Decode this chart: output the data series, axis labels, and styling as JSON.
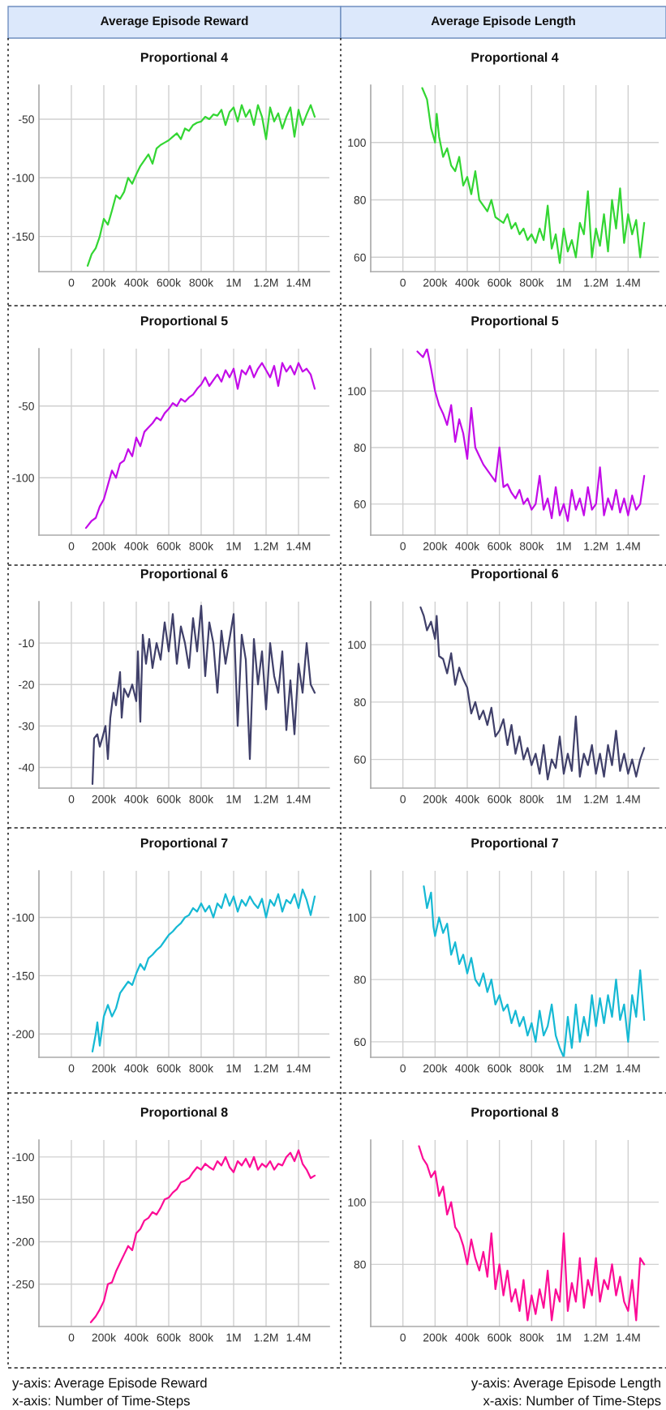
{
  "chart_data": [
    {
      "type": "line",
      "title": "Proportional 4",
      "annotations": [
        "Average Episode Reward"
      ],
      "grid": true,
      "xlim": [
        -200000,
        1590000
      ],
      "ylim": [
        -180,
        -21
      ],
      "xticks": [
        0,
        {
          "value": 200000,
          "label": "200k"
        },
        {
          "value": 400000,
          "label": "400k"
        },
        {
          "value": 600000,
          "label": "600k"
        },
        {
          "value": 800000,
          "label": "800k"
        },
        {
          "value": 1000000,
          "label": "1M"
        },
        {
          "value": 1200000,
          "label": "1.2M"
        },
        {
          "value": 1400000,
          "label": "1.4M"
        }
      ],
      "yticks": [
        -150,
        -100,
        -50
      ],
      "x": [
        100000,
        125000,
        150000,
        175000,
        200000,
        225000,
        250000,
        275000,
        300000,
        325000,
        350000,
        375000,
        400000,
        425000,
        450000,
        475000,
        500000,
        525000,
        550000,
        575000,
        600000,
        625000,
        650000,
        675000,
        700000,
        725000,
        750000,
        775000,
        800000,
        825000,
        850000,
        875000,
        900000,
        925000,
        950000,
        975000,
        1000000,
        1025000,
        1050000,
        1075000,
        1100000,
        1125000,
        1150000,
        1175000,
        1200000,
        1225000,
        1250000,
        1275000,
        1300000,
        1325000,
        1350000,
        1375000,
        1400000,
        1425000,
        1450000,
        1475000,
        1500000
      ],
      "series": [
        {
          "color": "#33d633",
          "values": [
            -175,
            -165,
            -160,
            -150,
            -135,
            -140,
            -128,
            -115,
            -118,
            -112,
            -100,
            -105,
            -97,
            -90,
            -85,
            -80,
            -88,
            -75,
            -72,
            -70,
            -68,
            -65,
            -62,
            -67,
            -58,
            -60,
            -55,
            -53,
            -52,
            -48,
            -50,
            -46,
            -47,
            -42,
            -55,
            -44,
            -40,
            -52,
            -38,
            -48,
            -42,
            -55,
            -38,
            -48,
            -67,
            -40,
            -52,
            -45,
            -58,
            -48,
            -40,
            -65,
            -42,
            -55,
            -46,
            -38,
            -48
          ]
        }
      ]
    },
    {
      "type": "line",
      "title": "Proportional 4",
      "annotations": [
        "Average Episode Length"
      ],
      "grid": true,
      "xlim": [
        -200000,
        1590000
      ],
      "ylim": [
        55,
        120
      ],
      "xticks": [
        0,
        {
          "value": 200000,
          "label": "200k"
        },
        {
          "value": 400000,
          "label": "400k"
        },
        {
          "value": 600000,
          "label": "600k"
        },
        {
          "value": 800000,
          "label": "800k"
        },
        {
          "value": 1000000,
          "label": "1M"
        },
        {
          "value": 1200000,
          "label": "1.2M"
        },
        {
          "value": 1400000,
          "label": "1.4M"
        }
      ],
      "yticks": [
        60,
        80,
        100
      ],
      "x": [
        120000,
        150000,
        175000,
        200000,
        210000,
        225000,
        250000,
        275000,
        300000,
        325000,
        350000,
        375000,
        400000,
        425000,
        450000,
        475000,
        500000,
        525000,
        550000,
        575000,
        600000,
        625000,
        650000,
        675000,
        700000,
        725000,
        750000,
        775000,
        800000,
        825000,
        850000,
        875000,
        900000,
        925000,
        950000,
        975000,
        1000000,
        1025000,
        1050000,
        1075000,
        1100000,
        1125000,
        1150000,
        1175000,
        1200000,
        1225000,
        1250000,
        1275000,
        1300000,
        1325000,
        1350000,
        1375000,
        1400000,
        1425000,
        1450000,
        1475000,
        1500000
      ],
      "series": [
        {
          "color": "#33d633",
          "values": [
            119,
            115,
            105,
            100,
            110,
            102,
            95,
            98,
            92,
            90,
            95,
            85,
            88,
            82,
            90,
            80,
            78,
            76,
            80,
            74,
            73,
            72,
            75,
            70,
            72,
            68,
            70,
            66,
            68,
            65,
            70,
            66,
            78,
            63,
            68,
            58,
            70,
            62,
            66,
            60,
            72,
            68,
            83,
            60,
            70,
            64,
            75,
            62,
            80,
            70,
            84,
            65,
            75,
            68,
            73,
            60,
            72
          ]
        }
      ]
    },
    {
      "type": "line",
      "title": "Proportional 5",
      "grid": true,
      "xlim": [
        -200000,
        1590000
      ],
      "ylim": [
        -140,
        -10
      ],
      "xticks": [
        0,
        {
          "value": 200000,
          "label": "200k"
        },
        {
          "value": 400000,
          "label": "400k"
        },
        {
          "value": 600000,
          "label": "600k"
        },
        {
          "value": 800000,
          "label": "800k"
        },
        {
          "value": 1000000,
          "label": "1M"
        },
        {
          "value": 1200000,
          "label": "1.2M"
        },
        {
          "value": 1400000,
          "label": "1.4M"
        }
      ],
      "yticks": [
        -100,
        -50
      ],
      "x": [
        90000,
        125000,
        150000,
        175000,
        200000,
        225000,
        250000,
        275000,
        300000,
        325000,
        350000,
        375000,
        400000,
        425000,
        450000,
        475000,
        500000,
        525000,
        550000,
        575000,
        600000,
        625000,
        650000,
        675000,
        700000,
        725000,
        750000,
        775000,
        800000,
        825000,
        850000,
        875000,
        900000,
        925000,
        950000,
        975000,
        1000000,
        1025000,
        1050000,
        1075000,
        1100000,
        1125000,
        1150000,
        1175000,
        1200000,
        1225000,
        1250000,
        1275000,
        1300000,
        1325000,
        1350000,
        1375000,
        1400000,
        1425000,
        1450000,
        1475000,
        1500000
      ],
      "series": [
        {
          "color": "#c30ce8",
          "values": [
            -135,
            -130,
            -128,
            -120,
            -115,
            -105,
            -95,
            -100,
            -90,
            -88,
            -80,
            -85,
            -72,
            -78,
            -68,
            -65,
            -62,
            -58,
            -60,
            -55,
            -52,
            -48,
            -50,
            -45,
            -47,
            -44,
            -42,
            -38,
            -35,
            -30,
            -36,
            -32,
            -28,
            -33,
            -25,
            -30,
            -24,
            -38,
            -25,
            -28,
            -22,
            -30,
            -24,
            -20,
            -25,
            -30,
            -22,
            -36,
            -20,
            -26,
            -22,
            -28,
            -20,
            -26,
            -24,
            -28,
            -38
          ]
        }
      ]
    },
    {
      "type": "line",
      "title": "Proportional 5",
      "grid": true,
      "xlim": [
        -200000,
        1590000
      ],
      "ylim": [
        49,
        115
      ],
      "xticks": [
        0,
        {
          "value": 200000,
          "label": "200k"
        },
        {
          "value": 400000,
          "label": "400k"
        },
        {
          "value": 600000,
          "label": "600k"
        },
        {
          "value": 800000,
          "label": "800k"
        },
        {
          "value": 1000000,
          "label": "1M"
        },
        {
          "value": 1200000,
          "label": "1.2M"
        },
        {
          "value": 1400000,
          "label": "1.4M"
        }
      ],
      "yticks": [
        60,
        80,
        100
      ],
      "x": [
        90000,
        125000,
        150000,
        175000,
        200000,
        225000,
        250000,
        275000,
        300000,
        325000,
        350000,
        375000,
        400000,
        425000,
        450000,
        475000,
        500000,
        525000,
        550000,
        575000,
        600000,
        625000,
        650000,
        675000,
        700000,
        725000,
        750000,
        775000,
        800000,
        825000,
        850000,
        875000,
        900000,
        925000,
        950000,
        975000,
        1000000,
        1025000,
        1050000,
        1075000,
        1100000,
        1125000,
        1150000,
        1175000,
        1200000,
        1225000,
        1250000,
        1275000,
        1300000,
        1325000,
        1350000,
        1375000,
        1400000,
        1425000,
        1450000,
        1475000,
        1500000
      ],
      "series": [
        {
          "color": "#c30ce8",
          "values": [
            114,
            112,
            115,
            108,
            100,
            95,
            92,
            88,
            95,
            82,
            90,
            85,
            76,
            94,
            80,
            77,
            74,
            72,
            70,
            68,
            80,
            66,
            67,
            64,
            62,
            65,
            60,
            62,
            58,
            60,
            70,
            58,
            62,
            55,
            66,
            56,
            60,
            54,
            65,
            58,
            62,
            56,
            66,
            58,
            60,
            73,
            56,
            62,
            58,
            65,
            57,
            62,
            56,
            63,
            58,
            60,
            70
          ]
        }
      ]
    },
    {
      "type": "line",
      "title": "Proportional 6",
      "grid": true,
      "xlim": [
        -200000,
        1590000
      ],
      "ylim": [
        -45,
        0
      ],
      "xticks": [
        0,
        {
          "value": 200000,
          "label": "200k"
        },
        {
          "value": 400000,
          "label": "400k"
        },
        {
          "value": 600000,
          "label": "600k"
        },
        {
          "value": 800000,
          "label": "800k"
        },
        {
          "value": 1000000,
          "label": "1M"
        },
        {
          "value": 1200000,
          "label": "1.2M"
        },
        {
          "value": 1400000,
          "label": "1.4M"
        }
      ],
      "yticks": [
        -40,
        -30,
        -20,
        -10
      ],
      "x": [
        130000,
        140000,
        150000,
        160000,
        175000,
        190000,
        200000,
        210000,
        225000,
        240000,
        260000,
        275000,
        300000,
        310000,
        325000,
        350000,
        375000,
        400000,
        410000,
        425000,
        440000,
        460000,
        480000,
        500000,
        525000,
        550000,
        575000,
        600000,
        625000,
        650000,
        675000,
        700000,
        725000,
        750000,
        775000,
        800000,
        825000,
        850000,
        875000,
        900000,
        925000,
        950000,
        975000,
        1000000,
        1025000,
        1050000,
        1075000,
        1100000,
        1125000,
        1150000,
        1175000,
        1200000,
        1225000,
        1250000,
        1275000,
        1300000,
        1325000,
        1350000,
        1375000,
        1400000,
        1425000,
        1450000,
        1475000,
        1500000
      ],
      "series": [
        {
          "color": "#40406a",
          "values": [
            -44,
            -33,
            null,
            -32,
            -35,
            -33,
            null,
            -30,
            -38,
            -28,
            -22,
            -25,
            -17,
            -28,
            -21,
            -23,
            -20,
            -24,
            -12,
            -29,
            -8,
            -15,
            -9,
            -16,
            -10,
            -14,
            -5,
            -12,
            -3,
            -15,
            -6,
            -10,
            -16,
            -4,
            -12,
            -1,
            -18,
            -5,
            -10,
            -22,
            -7,
            -15,
            -9,
            -3,
            -30,
            -8,
            -14,
            -38,
            -9,
            -20,
            -12,
            -26,
            -10,
            -18,
            -22,
            -12,
            -31,
            -19,
            -32,
            -15,
            -22,
            -10,
            -20,
            -22
          ]
        }
      ]
    },
    {
      "type": "line",
      "title": "Proportional 6",
      "grid": true,
      "xlim": [
        -200000,
        1590000
      ],
      "ylim": [
        50,
        115
      ],
      "xticks": [
        0,
        {
          "value": 200000,
          "label": "200k"
        },
        {
          "value": 400000,
          "label": "400k"
        },
        {
          "value": 600000,
          "label": "600k"
        },
        {
          "value": 800000,
          "label": "800k"
        },
        {
          "value": 1000000,
          "label": "1M"
        },
        {
          "value": 1200000,
          "label": "1.2M"
        },
        {
          "value": 1400000,
          "label": "1.4M"
        }
      ],
      "yticks": [
        60,
        80,
        100
      ],
      "x": [
        110000,
        130000,
        150000,
        175000,
        200000,
        210000,
        225000,
        250000,
        275000,
        300000,
        325000,
        350000,
        375000,
        400000,
        425000,
        450000,
        475000,
        500000,
        525000,
        550000,
        575000,
        600000,
        625000,
        650000,
        675000,
        700000,
        725000,
        750000,
        775000,
        800000,
        825000,
        850000,
        875000,
        900000,
        925000,
        950000,
        975000,
        1000000,
        1025000,
        1050000,
        1075000,
        1100000,
        1125000,
        1150000,
        1175000,
        1200000,
        1225000,
        1250000,
        1275000,
        1300000,
        1325000,
        1350000,
        1375000,
        1400000,
        1425000,
        1450000,
        1475000,
        1500000
      ],
      "series": [
        {
          "color": "#40406a",
          "values": [
            113,
            110,
            105,
            108,
            102,
            110,
            96,
            95,
            90,
            97,
            86,
            92,
            88,
            85,
            76,
            80,
            74,
            77,
            72,
            78,
            68,
            70,
            74,
            65,
            72,
            62,
            68,
            60,
            64,
            58,
            62,
            55,
            65,
            53,
            60,
            57,
            68,
            55,
            62,
            56,
            75,
            54,
            62,
            58,
            65,
            55,
            62,
            54,
            65,
            58,
            70,
            56,
            62,
            55,
            60,
            54,
            60,
            64
          ]
        }
      ]
    },
    {
      "type": "line",
      "title": "Proportional 7",
      "grid": true,
      "xlim": [
        -200000,
        1590000
      ],
      "ylim": [
        -220,
        -60
      ],
      "xticks": [
        0,
        {
          "value": 200000,
          "label": "200k"
        },
        {
          "value": 400000,
          "label": "400k"
        },
        {
          "value": 600000,
          "label": "600k"
        },
        {
          "value": 800000,
          "label": "800k"
        },
        {
          "value": 1000000,
          "label": "1M"
        },
        {
          "value": 1200000,
          "label": "1.2M"
        },
        {
          "value": 1400000,
          "label": "1.4M"
        }
      ],
      "yticks": [
        -200,
        -150,
        -100
      ],
      "x": [
        130000,
        150000,
        160000,
        175000,
        190000,
        200000,
        225000,
        250000,
        275000,
        300000,
        325000,
        350000,
        375000,
        400000,
        425000,
        450000,
        475000,
        500000,
        525000,
        550000,
        575000,
        600000,
        625000,
        650000,
        675000,
        700000,
        725000,
        750000,
        775000,
        800000,
        825000,
        850000,
        875000,
        900000,
        925000,
        950000,
        975000,
        1000000,
        1025000,
        1050000,
        1075000,
        1100000,
        1125000,
        1150000,
        1175000,
        1200000,
        1225000,
        1250000,
        1275000,
        1300000,
        1325000,
        1350000,
        1375000,
        1400000,
        1425000,
        1450000,
        1475000,
        1500000
      ],
      "series": [
        {
          "color": "#16b9d4",
          "values": [
            -215,
            -200,
            -190,
            -210,
            -195,
            -185,
            -175,
            -185,
            -178,
            -165,
            -160,
            -155,
            -158,
            -148,
            -140,
            -145,
            -135,
            -132,
            -128,
            -125,
            -120,
            -115,
            -112,
            -108,
            -105,
            -100,
            -98,
            -92,
            -95,
            -88,
            -95,
            -90,
            -100,
            -88,
            -92,
            -80,
            -90,
            -82,
            -95,
            -85,
            -90,
            -82,
            -88,
            -92,
            -84,
            -100,
            -85,
            -90,
            -80,
            -95,
            -85,
            -88,
            -80,
            -92,
            -76,
            -85,
            -98,
            -82
          ]
        }
      ]
    },
    {
      "type": "line",
      "title": "Proportional 7",
      "grid": true,
      "xlim": [
        -200000,
        1590000
      ],
      "ylim": [
        55,
        115
      ],
      "xticks": [
        0,
        {
          "value": 200000,
          "label": "200k"
        },
        {
          "value": 400000,
          "label": "400k"
        },
        {
          "value": 600000,
          "label": "600k"
        },
        {
          "value": 800000,
          "label": "800k"
        },
        {
          "value": 1000000,
          "label": "1M"
        },
        {
          "value": 1200000,
          "label": "1.2M"
        },
        {
          "value": 1400000,
          "label": "1.4M"
        }
      ],
      "yticks": [
        60,
        80,
        100
      ],
      "x": [
        130000,
        150000,
        175000,
        190000,
        200000,
        225000,
        250000,
        275000,
        300000,
        325000,
        350000,
        375000,
        400000,
        425000,
        450000,
        475000,
        500000,
        525000,
        550000,
        575000,
        600000,
        625000,
        650000,
        675000,
        700000,
        725000,
        750000,
        775000,
        800000,
        825000,
        850000,
        875000,
        900000,
        925000,
        950000,
        975000,
        1000000,
        1025000,
        1050000,
        1075000,
        1100000,
        1125000,
        1150000,
        1175000,
        1200000,
        1225000,
        1250000,
        1275000,
        1300000,
        1325000,
        1350000,
        1375000,
        1400000,
        1425000,
        1450000,
        1475000,
        1500000
      ],
      "series": [
        {
          "color": "#16b9d4",
          "values": [
            110,
            103,
            108,
            97,
            94,
            100,
            95,
            98,
            88,
            92,
            85,
            88,
            82,
            87,
            80,
            78,
            82,
            76,
            80,
            72,
            75,
            70,
            72,
            66,
            70,
            65,
            68,
            62,
            66,
            60,
            70,
            62,
            65,
            72,
            62,
            58,
            55,
            68,
            58,
            72,
            60,
            68,
            62,
            75,
            65,
            74,
            66,
            75,
            68,
            80,
            67,
            72,
            60,
            75,
            68,
            83,
            67
          ]
        }
      ]
    },
    {
      "type": "line",
      "title": "Proportional 8",
      "annotations": [
        "y-axis: Average Episode Reward",
        "x-axis: Number of Time-Steps"
      ],
      "grid": true,
      "xlim": [
        -200000,
        1590000
      ],
      "ylim": [
        -300,
        -80
      ],
      "xticks": [
        0,
        {
          "value": 200000,
          "label": "200k"
        },
        {
          "value": 400000,
          "label": "400k"
        },
        {
          "value": 600000,
          "label": "600k"
        },
        {
          "value": 800000,
          "label": "800k"
        },
        {
          "value": 1000000,
          "label": "1M"
        },
        {
          "value": 1200000,
          "label": "1.2M"
        },
        {
          "value": 1400000,
          "label": "1.4M"
        }
      ],
      "yticks": [
        -250,
        -200,
        -150,
        -100
      ],
      "x": [
        120000,
        150000,
        175000,
        200000,
        225000,
        250000,
        275000,
        300000,
        325000,
        350000,
        375000,
        400000,
        425000,
        450000,
        475000,
        500000,
        525000,
        550000,
        575000,
        600000,
        625000,
        650000,
        675000,
        700000,
        725000,
        750000,
        775000,
        800000,
        825000,
        850000,
        875000,
        900000,
        925000,
        950000,
        975000,
        1000000,
        1025000,
        1050000,
        1075000,
        1100000,
        1125000,
        1150000,
        1175000,
        1200000,
        1225000,
        1250000,
        1275000,
        1300000,
        1325000,
        1350000,
        1375000,
        1400000,
        1425000,
        1450000,
        1475000,
        1500000
      ],
      "series": [
        {
          "color": "#fc0c96",
          "values": [
            -295,
            -288,
            -280,
            -270,
            -250,
            -248,
            -235,
            -225,
            -215,
            -205,
            -210,
            -190,
            -185,
            -175,
            -172,
            -165,
            -168,
            -160,
            -150,
            -148,
            -142,
            -138,
            -130,
            -128,
            -125,
            -118,
            -112,
            -115,
            -108,
            -112,
            -115,
            -105,
            -110,
            -100,
            -112,
            -118,
            -105,
            -110,
            -102,
            -112,
            -100,
            -115,
            -108,
            -112,
            -105,
            -115,
            -108,
            -110,
            -100,
            -95,
            -105,
            -92,
            -108,
            -115,
            -125,
            -122
          ]
        }
      ]
    },
    {
      "type": "line",
      "title": "Proportional 8",
      "annotations": [
        "y-axis: Average Episode Length",
        "x-axis: Number of Time-Steps"
      ],
      "grid": true,
      "xlim": [
        -200000,
        1590000
      ],
      "ylim": [
        60,
        120
      ],
      "xticks": [
        0,
        {
          "value": 200000,
          "label": "200k"
        },
        {
          "value": 400000,
          "label": "400k"
        },
        {
          "value": 600000,
          "label": "600k"
        },
        {
          "value": 800000,
          "label": "800k"
        },
        {
          "value": 1000000,
          "label": "1M"
        },
        {
          "value": 1200000,
          "label": "1.2M"
        },
        {
          "value": 1400000,
          "label": "1.4M"
        }
      ],
      "yticks": [
        80,
        100
      ],
      "x": [
        100000,
        125000,
        150000,
        175000,
        200000,
        225000,
        250000,
        275000,
        300000,
        325000,
        350000,
        375000,
        400000,
        425000,
        450000,
        475000,
        500000,
        525000,
        550000,
        575000,
        600000,
        625000,
        650000,
        675000,
        700000,
        725000,
        750000,
        775000,
        800000,
        825000,
        850000,
        875000,
        900000,
        925000,
        950000,
        975000,
        1000000,
        1025000,
        1050000,
        1075000,
        1100000,
        1125000,
        1150000,
        1175000,
        1200000,
        1225000,
        1250000,
        1275000,
        1300000,
        1325000,
        1350000,
        1375000,
        1400000,
        1425000,
        1450000,
        1475000,
        1500000
      ],
      "series": [
        {
          "color": "#fc0c96",
          "values": [
            118,
            114,
            112,
            108,
            110,
            102,
            105,
            96,
            100,
            92,
            90,
            86,
            80,
            88,
            82,
            78,
            84,
            76,
            90,
            72,
            80,
            70,
            78,
            68,
            72,
            65,
            75,
            62,
            70,
            64,
            72,
            66,
            78,
            62,
            72,
            68,
            90,
            65,
            74,
            68,
            82,
            66,
            75,
            70,
            82,
            68,
            75,
            72,
            80,
            70,
            76,
            68,
            65,
            75,
            62,
            82,
            80
          ]
        }
      ]
    }
  ]
}
